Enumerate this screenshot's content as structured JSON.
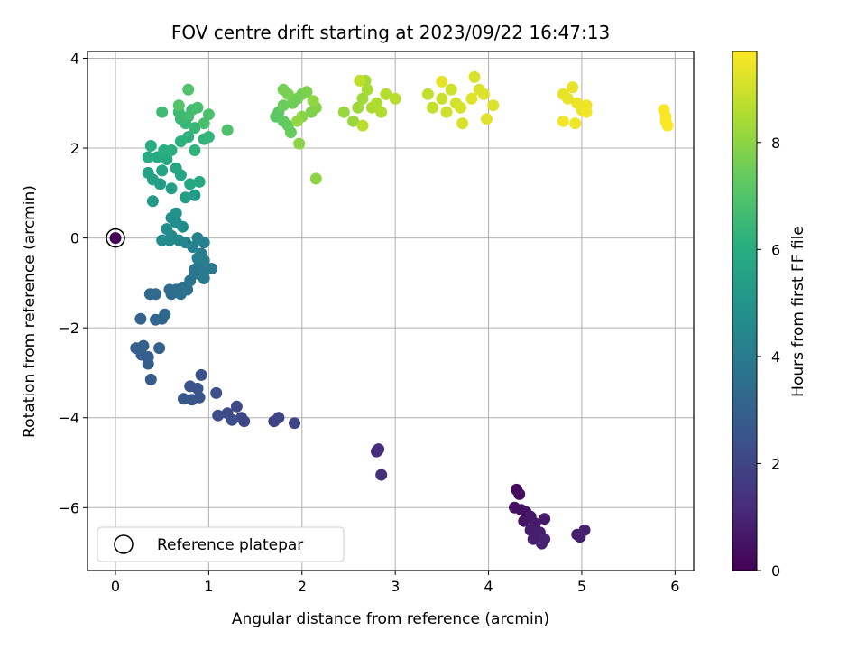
{
  "chart_data": {
    "type": "scatter",
    "title": "FOV centre drift starting at 2023/09/22 16:47:13",
    "xlabel": "Angular distance from reference (arcmin)",
    "ylabel": "Rotation from reference (arcmin)",
    "xlim": [
      -0.3,
      6.2
    ],
    "ylim": [
      -7.4,
      4.15
    ],
    "xticks": [
      0,
      1,
      2,
      3,
      4,
      5,
      6
    ],
    "yticks": [
      -6,
      -4,
      -2,
      0,
      2,
      4
    ],
    "xtick_labels": [
      "0",
      "1",
      "2",
      "3",
      "4",
      "5",
      "6"
    ],
    "ytick_labels": [
      "−6",
      "−4",
      "−2",
      "0",
      "2",
      "4"
    ],
    "grid": true,
    "colormap": "viridis",
    "colorbar": {
      "label": "Hours from first FF file",
      "range": [
        0,
        9.7
      ],
      "ticks": [
        0,
        2,
        4,
        6,
        8
      ],
      "tick_labels": [
        "0",
        "2",
        "4",
        "6",
        "8"
      ]
    },
    "legend": {
      "placement": "lower-left",
      "entries": [
        "Reference platepar"
      ]
    },
    "reference_point": {
      "x": 0,
      "y": 0
    },
    "points": [
      {
        "x": 0.0,
        "y": 0.0,
        "h": 0.0
      },
      {
        "x": 4.3,
        "y": -5.6,
        "h": 0.3
      },
      {
        "x": 4.33,
        "y": -5.7,
        "h": 0.35
      },
      {
        "x": 4.28,
        "y": -6.0,
        "h": 0.4
      },
      {
        "x": 4.35,
        "y": -6.05,
        "h": 0.45
      },
      {
        "x": 4.4,
        "y": -6.1,
        "h": 0.5
      },
      {
        "x": 4.38,
        "y": -6.3,
        "h": 0.55
      },
      {
        "x": 4.45,
        "y": -6.2,
        "h": 0.6
      },
      {
        "x": 4.5,
        "y": -6.35,
        "h": 0.65
      },
      {
        "x": 4.6,
        "y": -6.25,
        "h": 0.7
      },
      {
        "x": 4.45,
        "y": -6.5,
        "h": 0.75
      },
      {
        "x": 4.55,
        "y": -6.55,
        "h": 0.8
      },
      {
        "x": 4.48,
        "y": -6.7,
        "h": 0.85
      },
      {
        "x": 4.57,
        "y": -6.8,
        "h": 0.9
      },
      {
        "x": 4.6,
        "y": -6.7,
        "h": 0.95
      },
      {
        "x": 4.95,
        "y": -6.6,
        "h": 0.8
      },
      {
        "x": 4.98,
        "y": -6.65,
        "h": 0.85
      },
      {
        "x": 5.03,
        "y": -6.5,
        "h": 0.9
      },
      {
        "x": 2.8,
        "y": -4.75,
        "h": 1.2
      },
      {
        "x": 2.82,
        "y": -4.7,
        "h": 1.25
      },
      {
        "x": 2.85,
        "y": -5.27,
        "h": 1.3
      },
      {
        "x": 1.7,
        "y": -4.08,
        "h": 1.9
      },
      {
        "x": 1.75,
        "y": -4.0,
        "h": 1.95
      },
      {
        "x": 1.92,
        "y": -4.12,
        "h": 2.0
      },
      {
        "x": 1.38,
        "y": -4.08,
        "h": 2.05
      },
      {
        "x": 1.35,
        "y": -4.0,
        "h": 2.1
      },
      {
        "x": 1.3,
        "y": -3.75,
        "h": 2.15
      },
      {
        "x": 1.2,
        "y": -3.9,
        "h": 2.2
      },
      {
        "x": 1.1,
        "y": -3.95,
        "h": 2.25
      },
      {
        "x": 1.25,
        "y": -4.05,
        "h": 2.3
      },
      {
        "x": 1.08,
        "y": -3.45,
        "h": 2.35
      },
      {
        "x": 0.92,
        "y": -3.05,
        "h": 2.4
      },
      {
        "x": 0.8,
        "y": -3.3,
        "h": 2.45
      },
      {
        "x": 0.88,
        "y": -3.35,
        "h": 2.5
      },
      {
        "x": 0.9,
        "y": -3.55,
        "h": 2.55
      },
      {
        "x": 0.82,
        "y": -3.6,
        "h": 2.6
      },
      {
        "x": 0.73,
        "y": -3.58,
        "h": 2.65
      },
      {
        "x": 0.38,
        "y": -3.15,
        "h": 2.75
      },
      {
        "x": 0.35,
        "y": -2.8,
        "h": 2.8
      },
      {
        "x": 0.35,
        "y": -2.65,
        "h": 2.85
      },
      {
        "x": 0.28,
        "y": -2.6,
        "h": 2.9
      },
      {
        "x": 0.22,
        "y": -2.45,
        "h": 2.95
      },
      {
        "x": 0.3,
        "y": -2.4,
        "h": 3.0
      },
      {
        "x": 0.47,
        "y": -2.45,
        "h": 3.05
      },
      {
        "x": 0.27,
        "y": -1.8,
        "h": 3.1
      },
      {
        "x": 0.43,
        "y": -1.82,
        "h": 3.15
      },
      {
        "x": 0.5,
        "y": -1.8,
        "h": 3.2
      },
      {
        "x": 0.53,
        "y": -1.7,
        "h": 3.25
      },
      {
        "x": 0.37,
        "y": -1.25,
        "h": 3.3
      },
      {
        "x": 0.43,
        "y": -1.25,
        "h": 3.35
      },
      {
        "x": 0.58,
        "y": -1.15,
        "h": 3.4
      },
      {
        "x": 0.6,
        "y": -1.25,
        "h": 3.45
      },
      {
        "x": 0.65,
        "y": -1.15,
        "h": 3.5
      },
      {
        "x": 0.7,
        "y": -1.25,
        "h": 3.55
      },
      {
        "x": 0.72,
        "y": -1.1,
        "h": 3.6
      },
      {
        "x": 0.77,
        "y": -1.15,
        "h": 3.65
      },
      {
        "x": 0.8,
        "y": -0.95,
        "h": 3.7
      },
      {
        "x": 0.85,
        "y": -0.8,
        "h": 3.75
      },
      {
        "x": 0.85,
        "y": -0.7,
        "h": 3.8
      },
      {
        "x": 0.9,
        "y": -0.6,
        "h": 3.85
      },
      {
        "x": 0.95,
        "y": -0.75,
        "h": 3.9
      },
      {
        "x": 0.95,
        "y": -0.9,
        "h": 3.95
      },
      {
        "x": 1.03,
        "y": -0.68,
        "h": 4.0
      },
      {
        "x": 0.92,
        "y": -0.35,
        "h": 4.05
      },
      {
        "x": 0.95,
        "y": -0.5,
        "h": 4.1
      },
      {
        "x": 0.88,
        "y": -0.45,
        "h": 4.15
      },
      {
        "x": 0.95,
        "y": -0.1,
        "h": 4.2
      },
      {
        "x": 0.88,
        "y": 0.0,
        "h": 4.25
      },
      {
        "x": 0.83,
        "y": -0.2,
        "h": 4.3
      },
      {
        "x": 0.75,
        "y": -0.1,
        "h": 4.35
      },
      {
        "x": 0.68,
        "y": -0.05,
        "h": 4.4
      },
      {
        "x": 0.6,
        "y": 0.05,
        "h": 4.5
      },
      {
        "x": 0.58,
        "y": -0.05,
        "h": 4.55
      },
      {
        "x": 0.5,
        "y": -0.05,
        "h": 4.6
      },
      {
        "x": 0.55,
        "y": 0.2,
        "h": 4.65
      },
      {
        "x": 0.65,
        "y": 0.35,
        "h": 4.7
      },
      {
        "x": 0.72,
        "y": 0.25,
        "h": 4.75
      },
      {
        "x": 0.6,
        "y": 0.45,
        "h": 4.8
      },
      {
        "x": 0.65,
        "y": 0.55,
        "h": 4.85
      },
      {
        "x": 0.4,
        "y": 0.82,
        "h": 5.2
      },
      {
        "x": 0.85,
        "y": 0.95,
        "h": 5.3
      },
      {
        "x": 0.75,
        "y": 0.9,
        "h": 5.35
      },
      {
        "x": 0.6,
        "y": 1.1,
        "h": 5.4
      },
      {
        "x": 0.48,
        "y": 1.2,
        "h": 5.45
      },
      {
        "x": 0.4,
        "y": 1.3,
        "h": 5.5
      },
      {
        "x": 0.35,
        "y": 1.45,
        "h": 5.55
      },
      {
        "x": 0.5,
        "y": 1.5,
        "h": 5.6
      },
      {
        "x": 0.65,
        "y": 1.55,
        "h": 5.65
      },
      {
        "x": 0.7,
        "y": 1.4,
        "h": 5.7
      },
      {
        "x": 0.8,
        "y": 1.2,
        "h": 5.75
      },
      {
        "x": 0.9,
        "y": 1.25,
        "h": 5.8
      },
      {
        "x": 0.55,
        "y": 1.75,
        "h": 5.85
      },
      {
        "x": 0.45,
        "y": 1.8,
        "h": 5.9
      },
      {
        "x": 0.35,
        "y": 1.8,
        "h": 5.95
      },
      {
        "x": 0.38,
        "y": 2.05,
        "h": 6.0
      },
      {
        "x": 0.52,
        "y": 1.95,
        "h": 6.05
      },
      {
        "x": 0.6,
        "y": 1.95,
        "h": 6.1
      },
      {
        "x": 0.7,
        "y": 2.15,
        "h": 6.15
      },
      {
        "x": 0.78,
        "y": 2.25,
        "h": 6.2
      },
      {
        "x": 0.85,
        "y": 1.95,
        "h": 6.25
      },
      {
        "x": 0.95,
        "y": 2.2,
        "h": 6.3
      },
      {
        "x": 1.0,
        "y": 2.25,
        "h": 6.35
      },
      {
        "x": 0.85,
        "y": 2.45,
        "h": 6.4
      },
      {
        "x": 0.75,
        "y": 2.55,
        "h": 6.45
      },
      {
        "x": 0.7,
        "y": 2.65,
        "h": 6.5
      },
      {
        "x": 0.68,
        "y": 2.8,
        "h": 6.55
      },
      {
        "x": 0.5,
        "y": 2.8,
        "h": 6.6
      },
      {
        "x": 0.78,
        "y": 2.7,
        "h": 6.65
      },
      {
        "x": 0.82,
        "y": 2.85,
        "h": 6.7
      },
      {
        "x": 0.88,
        "y": 2.9,
        "h": 6.75
      },
      {
        "x": 0.95,
        "y": 2.55,
        "h": 6.8
      },
      {
        "x": 1.0,
        "y": 2.75,
        "h": 6.85
      },
      {
        "x": 1.2,
        "y": 2.4,
        "h": 6.9
      },
      {
        "x": 0.78,
        "y": 3.3,
        "h": 6.95
      },
      {
        "x": 0.68,
        "y": 2.95,
        "h": 7.0
      },
      {
        "x": 1.72,
        "y": 2.7,
        "h": 7.2
      },
      {
        "x": 1.75,
        "y": 2.8,
        "h": 7.25
      },
      {
        "x": 1.8,
        "y": 2.6,
        "h": 7.3
      },
      {
        "x": 1.85,
        "y": 2.5,
        "h": 7.35
      },
      {
        "x": 1.88,
        "y": 2.35,
        "h": 7.4
      },
      {
        "x": 1.8,
        "y": 2.95,
        "h": 7.45
      },
      {
        "x": 1.9,
        "y": 3.0,
        "h": 7.5
      },
      {
        "x": 1.95,
        "y": 3.1,
        "h": 7.55
      },
      {
        "x": 2.0,
        "y": 3.2,
        "h": 7.6
      },
      {
        "x": 1.8,
        "y": 3.3,
        "h": 7.65
      },
      {
        "x": 1.85,
        "y": 3.2,
        "h": 7.7
      },
      {
        "x": 2.05,
        "y": 3.25,
        "h": 7.75
      },
      {
        "x": 2.1,
        "y": 2.8,
        "h": 7.8
      },
      {
        "x": 2.15,
        "y": 2.9,
        "h": 7.85
      },
      {
        "x": 2.0,
        "y": 2.7,
        "h": 7.9
      },
      {
        "x": 1.97,
        "y": 2.1,
        "h": 7.95
      },
      {
        "x": 2.15,
        "y": 1.32,
        "h": 8.0
      },
      {
        "x": 2.12,
        "y": 3.05,
        "h": 8.05
      },
      {
        "x": 1.95,
        "y": 2.6,
        "h": 8.1
      },
      {
        "x": 2.45,
        "y": 2.8,
        "h": 8.15
      },
      {
        "x": 2.55,
        "y": 2.6,
        "h": 8.2
      },
      {
        "x": 2.6,
        "y": 2.9,
        "h": 8.25
      },
      {
        "x": 2.65,
        "y": 3.1,
        "h": 8.3
      },
      {
        "x": 2.68,
        "y": 3.5,
        "h": 8.35
      },
      {
        "x": 2.7,
        "y": 3.3,
        "h": 8.4
      },
      {
        "x": 2.75,
        "y": 2.9,
        "h": 8.45
      },
      {
        "x": 2.8,
        "y": 3.0,
        "h": 8.5
      },
      {
        "x": 2.85,
        "y": 2.8,
        "h": 8.55
      },
      {
        "x": 2.9,
        "y": 3.2,
        "h": 8.6
      },
      {
        "x": 3.0,
        "y": 3.1,
        "h": 8.65
      },
      {
        "x": 2.65,
        "y": 2.5,
        "h": 8.7
      },
      {
        "x": 2.62,
        "y": 3.5,
        "h": 8.75
      },
      {
        "x": 3.35,
        "y": 3.2,
        "h": 8.8
      },
      {
        "x": 3.4,
        "y": 2.9,
        "h": 8.85
      },
      {
        "x": 3.5,
        "y": 3.1,
        "h": 8.9
      },
      {
        "x": 3.55,
        "y": 2.8,
        "h": 8.95
      },
      {
        "x": 3.6,
        "y": 3.3,
        "h": 9.0
      },
      {
        "x": 3.65,
        "y": 3.0,
        "h": 9.05
      },
      {
        "x": 3.7,
        "y": 2.9,
        "h": 9.1
      },
      {
        "x": 3.72,
        "y": 2.55,
        "h": 9.12
      },
      {
        "x": 3.85,
        "y": 3.58,
        "h": 9.15
      },
      {
        "x": 3.9,
        "y": 3.3,
        "h": 9.18
      },
      {
        "x": 3.95,
        "y": 3.2,
        "h": 9.2
      },
      {
        "x": 4.05,
        "y": 2.95,
        "h": 9.22
      },
      {
        "x": 3.98,
        "y": 2.65,
        "h": 9.25
      },
      {
        "x": 3.82,
        "y": 3.1,
        "h": 9.28
      },
      {
        "x": 3.5,
        "y": 3.48,
        "h": 9.3
      },
      {
        "x": 4.8,
        "y": 3.2,
        "h": 9.35
      },
      {
        "x": 4.85,
        "y": 3.1,
        "h": 9.38
      },
      {
        "x": 4.9,
        "y": 3.35,
        "h": 9.4
      },
      {
        "x": 4.95,
        "y": 3.0,
        "h": 9.42
      },
      {
        "x": 5.0,
        "y": 2.85,
        "h": 9.45
      },
      {
        "x": 5.05,
        "y": 2.95,
        "h": 9.48
      },
      {
        "x": 4.8,
        "y": 2.6,
        "h": 9.5
      },
      {
        "x": 4.93,
        "y": 2.55,
        "h": 9.52
      },
      {
        "x": 5.05,
        "y": 2.8,
        "h": 9.54
      },
      {
        "x": 5.88,
        "y": 2.85,
        "h": 9.6
      },
      {
        "x": 5.9,
        "y": 2.7,
        "h": 9.62
      },
      {
        "x": 5.92,
        "y": 2.5,
        "h": 9.65
      },
      {
        "x": 5.9,
        "y": 2.6,
        "h": 9.68
      }
    ]
  }
}
